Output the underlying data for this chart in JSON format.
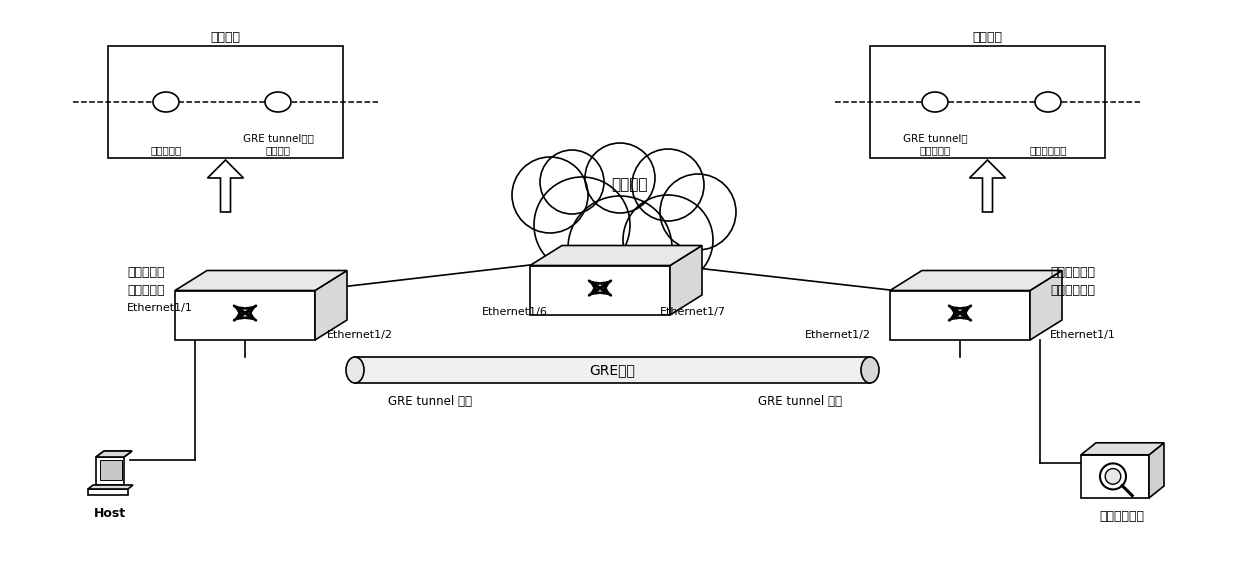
{
  "bg_color": "#ffffff",
  "switch_chip_left_label": "交换芯片",
  "switch_chip_right_label": "交换芯片",
  "mirror_src_port_label": "镜像源端口",
  "gre_tunnel_out_label": "GRE tunnel接口\n的出端口",
  "gre_tunnel_in_label": "GRE tunnel接\n口的入端口",
  "mirror_dst_port_label": "镜像目的端口",
  "mirror_src_device1": "镜像源设备",
  "mirror_src_device2": "镜像源端口",
  "mirror_dst_device1": "镜像目的设备",
  "mirror_dst_device2": "镜像目的端口",
  "eth_1_1_left": "Ethernet1/1",
  "eth_1_2_left": "Ethernet1/2",
  "eth_1_6": "Ethernet1/6",
  "eth_1_7": "Ethernet1/7",
  "eth_1_2_right": "Ethernet1/2",
  "eth_1_1_right": "Ethernet1/1",
  "mid_device": "中间设备",
  "gre_tunnel": "GRE隧道",
  "gre_tunnel_label_left": "GRE tunnel 接口",
  "gre_tunnel_label_right": "GRE tunnel 接口",
  "host": "Host",
  "monitor": "数据监控设备"
}
